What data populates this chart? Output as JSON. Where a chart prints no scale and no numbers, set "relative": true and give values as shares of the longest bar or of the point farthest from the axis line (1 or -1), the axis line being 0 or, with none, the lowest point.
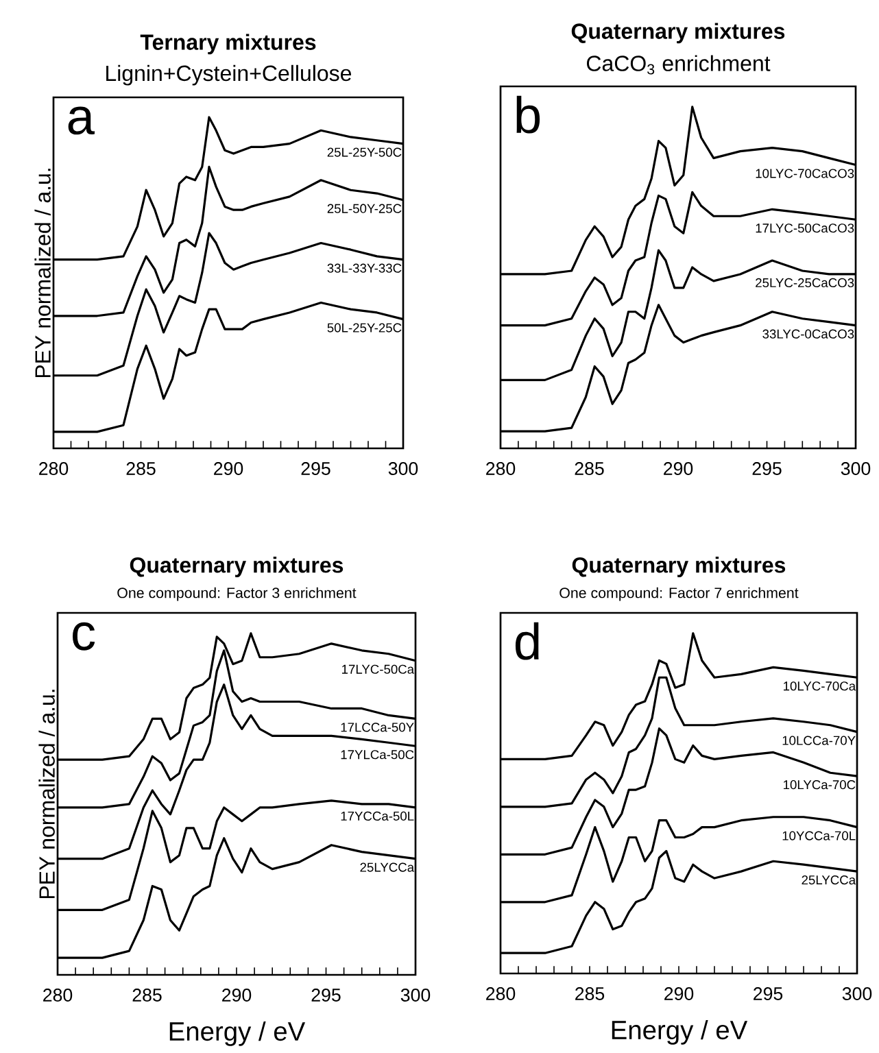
{
  "chart_data": [
    {
      "type": "line",
      "title": "Ternary mixtures",
      "subtitle": "Lignin+Cystein+Cellulose",
      "ylabel": "PEY normalized / a.u.",
      "annotations": [
        "a"
      ],
      "relative": true,
      "xlim": [
        280,
        300
      ],
      "xticks": [
        280,
        {
          "value": 281,
          "label": null
        },
        {
          "value": 282,
          "label": null
        },
        {
          "value": 283,
          "label": null
        },
        {
          "value": 284,
          "label": null
        },
        285,
        {
          "value": 286,
          "label": null
        },
        {
          "value": 287,
          "label": null
        },
        {
          "value": 288,
          "label": null
        },
        {
          "value": 289,
          "label": null
        },
        290,
        {
          "value": 291,
          "label": null
        },
        {
          "value": 292,
          "label": null
        },
        {
          "value": 293,
          "label": null
        },
        {
          "value": 294,
          "label": null
        },
        295,
        {
          "value": 296,
          "label": null
        },
        {
          "value": 297,
          "label": null
        },
        {
          "value": 298,
          "label": null
        },
        {
          "value": 299,
          "label": null
        },
        300
      ],
      "x": [
        280,
        282.5,
        284,
        284.8,
        285.3,
        285.8,
        286.3,
        286.8,
        287.2,
        287.6,
        288.1,
        288.5,
        288.9,
        289.3,
        289.8,
        290.3,
        290.8,
        291.3,
        292,
        293.5,
        295.3,
        297,
        298.5,
        300
      ],
      "series": [
        {
          "name": "25L-25Y-50C",
          "color": "#000000",
          "values": [
            0.57,
            0.57,
            0.58,
            0.67,
            0.78,
            0.72,
            0.64,
            0.68,
            0.8,
            0.82,
            0.81,
            0.85,
            1.0,
            0.96,
            0.9,
            0.89,
            0.9,
            0.91,
            0.91,
            0.92,
            0.96,
            0.94,
            0.93,
            0.92
          ]
        },
        {
          "name": "25L-50Y-25C",
          "color": "#000000",
          "values": [
            0.4,
            0.4,
            0.41,
            0.52,
            0.58,
            0.54,
            0.47,
            0.51,
            0.62,
            0.63,
            0.61,
            0.68,
            0.85,
            0.79,
            0.73,
            0.72,
            0.72,
            0.73,
            0.74,
            0.76,
            0.81,
            0.78,
            0.77,
            0.75
          ]
        },
        {
          "name": "33L-33Y-33C",
          "color": "#000000",
          "values": [
            0.22,
            0.22,
            0.25,
            0.4,
            0.48,
            0.43,
            0.35,
            0.41,
            0.46,
            0.45,
            0.44,
            0.53,
            0.65,
            0.62,
            0.56,
            0.54,
            0.55,
            0.56,
            0.57,
            0.59,
            0.62,
            0.6,
            0.58,
            0.57
          ]
        },
        {
          "name": "50L-25Y-25C",
          "color": "#000000",
          "values": [
            0.05,
            0.05,
            0.07,
            0.24,
            0.31,
            0.24,
            0.15,
            0.21,
            0.3,
            0.28,
            0.29,
            0.36,
            0.42,
            0.42,
            0.36,
            0.36,
            0.36,
            0.38,
            0.39,
            0.41,
            0.44,
            0.42,
            0.41,
            0.39
          ]
        }
      ]
    },
    {
      "type": "line",
      "title": "Quaternary mixtures",
      "subtitle": "CaCO$_{3}$ enrichment",
      "annotations": [
        "b"
      ],
      "relative": true,
      "xlim": [
        280,
        300
      ],
      "xticks": [
        280,
        {
          "value": 281,
          "label": null
        },
        {
          "value": 282,
          "label": null
        },
        {
          "value": 283,
          "label": null
        },
        {
          "value": 284,
          "label": null
        },
        285,
        {
          "value": 286,
          "label": null
        },
        {
          "value": 287,
          "label": null
        },
        {
          "value": 288,
          "label": null
        },
        {
          "value": 289,
          "label": null
        },
        290,
        {
          "value": 291,
          "label": null
        },
        {
          "value": 292,
          "label": null
        },
        {
          "value": 293,
          "label": null
        },
        {
          "value": 294,
          "label": null
        },
        295,
        {
          "value": 296,
          "label": null
        },
        {
          "value": 297,
          "label": null
        },
        {
          "value": 298,
          "label": null
        },
        {
          "value": 299,
          "label": null
        },
        300
      ],
      "x": [
        280,
        282.5,
        284,
        284.8,
        285.3,
        285.8,
        286.3,
        286.8,
        287.2,
        287.6,
        288.1,
        288.5,
        288.9,
        289.3,
        289.8,
        290.3,
        290.8,
        291.3,
        292,
        293.5,
        295.3,
        297,
        298.5,
        300
      ],
      "series": [
        {
          "name": "10LYC-70CaCO3",
          "color": "#000000",
          "values": [
            0.51,
            0.51,
            0.52,
            0.61,
            0.65,
            0.62,
            0.56,
            0.59,
            0.67,
            0.71,
            0.73,
            0.79,
            0.9,
            0.88,
            0.77,
            0.8,
            1.0,
            0.91,
            0.85,
            0.87,
            0.88,
            0.87,
            0.85,
            0.83
          ]
        },
        {
          "name": "17LYC-50CaCO3",
          "color": "#000000",
          "values": [
            0.36,
            0.36,
            0.38,
            0.46,
            0.5,
            0.48,
            0.42,
            0.44,
            0.52,
            0.55,
            0.56,
            0.66,
            0.74,
            0.73,
            0.65,
            0.63,
            0.75,
            0.71,
            0.68,
            0.68,
            0.7,
            0.69,
            0.68,
            0.67
          ]
        },
        {
          "name": "25LYC-25CaCO3",
          "color": "#000000",
          "values": [
            0.2,
            0.2,
            0.23,
            0.33,
            0.38,
            0.35,
            0.27,
            0.31,
            0.4,
            0.4,
            0.38,
            0.47,
            0.58,
            0.55,
            0.47,
            0.47,
            0.53,
            0.51,
            0.49,
            0.51,
            0.55,
            0.52,
            0.51,
            0.51
          ]
        },
        {
          "name": "33LYC-0CaCO3",
          "color": "#000000",
          "values": [
            0.05,
            0.05,
            0.06,
            0.15,
            0.24,
            0.21,
            0.13,
            0.17,
            0.25,
            0.26,
            0.28,
            0.36,
            0.42,
            0.38,
            0.33,
            0.31,
            0.32,
            0.33,
            0.34,
            0.36,
            0.4,
            0.38,
            0.37,
            0.36
          ]
        }
      ]
    },
    {
      "type": "line",
      "title": "Quaternary mixtures",
      "subtitle": "One compound: Factor 3 enrichment",
      "xlabel": "Energy / eV",
      "ylabel": "PEY normalized / a.u.",
      "annotations": [
        "c"
      ],
      "relative": true,
      "xlim": [
        280,
        300
      ],
      "xticks": [
        280,
        {
          "value": 281,
          "label": null
        },
        {
          "value": 282,
          "label": null
        },
        {
          "value": 283,
          "label": null
        },
        {
          "value": 284,
          "label": null
        },
        285,
        {
          "value": 286,
          "label": null
        },
        {
          "value": 287,
          "label": null
        },
        {
          "value": 288,
          "label": null
        },
        {
          "value": 289,
          "label": null
        },
        290,
        {
          "value": 291,
          "label": null
        },
        {
          "value": 292,
          "label": null
        },
        {
          "value": 293,
          "label": null
        },
        {
          "value": 294,
          "label": null
        },
        295,
        {
          "value": 296,
          "label": null
        },
        {
          "value": 297,
          "label": null
        },
        {
          "value": 298,
          "label": null
        },
        {
          "value": 299,
          "label": null
        },
        300
      ],
      "x": [
        280,
        282.5,
        284,
        284.8,
        285.3,
        285.8,
        286.3,
        286.8,
        287.2,
        287.6,
        288.1,
        288.5,
        288.9,
        289.3,
        289.8,
        290.3,
        290.8,
        291.3,
        292,
        293.5,
        295.3,
        297,
        298.5,
        300
      ],
      "series": [
        {
          "name": "17LYC-50Ca",
          "color": "#000000",
          "values": [
            0.63,
            0.63,
            0.64,
            0.69,
            0.75,
            0.75,
            0.69,
            0.71,
            0.81,
            0.84,
            0.85,
            0.87,
            0.99,
            0.97,
            0.91,
            0.92,
            1.0,
            0.93,
            0.93,
            0.94,
            0.97,
            0.95,
            0.94,
            0.92
          ]
        },
        {
          "name": "17LCCa-50Y",
          "color": "#000000",
          "values": [
            0.49,
            0.49,
            0.5,
            0.58,
            0.64,
            0.62,
            0.57,
            0.59,
            0.66,
            0.73,
            0.74,
            0.76,
            0.89,
            0.95,
            0.83,
            0.8,
            0.81,
            0.8,
            0.8,
            0.8,
            0.78,
            0.78,
            0.76,
            0.75
          ]
        },
        {
          "name": "17YLCa-50C",
          "color": "#000000",
          "values": [
            0.34,
            0.34,
            0.37,
            0.49,
            0.54,
            0.5,
            0.47,
            0.54,
            0.6,
            0.63,
            0.63,
            0.68,
            0.8,
            0.85,
            0.76,
            0.72,
            0.76,
            0.72,
            0.7,
            0.7,
            0.7,
            0.69,
            0.68,
            0.67
          ]
        },
        {
          "name": "17YCCa-50L",
          "color": "#000000",
          "values": [
            0.19,
            0.19,
            0.22,
            0.37,
            0.48,
            0.43,
            0.33,
            0.35,
            0.43,
            0.43,
            0.37,
            0.37,
            0.45,
            0.49,
            0.47,
            0.45,
            0.47,
            0.49,
            0.49,
            0.5,
            0.51,
            0.5,
            0.5,
            0.49
          ]
        },
        {
          "name": "25LYCCa",
          "color": "#000000",
          "values": [
            0.05,
            0.05,
            0.07,
            0.16,
            0.26,
            0.25,
            0.16,
            0.13,
            0.18,
            0.23,
            0.25,
            0.26,
            0.35,
            0.4,
            0.34,
            0.3,
            0.37,
            0.33,
            0.31,
            0.33,
            0.38,
            0.36,
            0.35,
            0.34
          ]
        }
      ]
    },
    {
      "type": "line",
      "title": "Quaternary mixtures",
      "subtitle": "One compound: Factor 7 enrichment",
      "xlabel": "Energy / eV",
      "annotations": [
        "d"
      ],
      "relative": true,
      "xlim": [
        280,
        300
      ],
      "xticks": [
        280,
        {
          "value": 281,
          "label": null
        },
        {
          "value": 282,
          "label": null
        },
        {
          "value": 283,
          "label": null
        },
        {
          "value": 284,
          "label": null
        },
        285,
        {
          "value": 286,
          "label": null
        },
        {
          "value": 287,
          "label": null
        },
        {
          "value": 288,
          "label": null
        },
        {
          "value": 289,
          "label": null
        },
        290,
        {
          "value": 291,
          "label": null
        },
        {
          "value": 292,
          "label": null
        },
        {
          "value": 293,
          "label": null
        },
        {
          "value": 294,
          "label": null
        },
        295,
        {
          "value": 296,
          "label": null
        },
        {
          "value": 297,
          "label": null
        },
        {
          "value": 298,
          "label": null
        },
        {
          "value": 299,
          "label": null
        },
        300
      ],
      "x": [
        280,
        282.5,
        284,
        284.8,
        285.3,
        285.8,
        286.3,
        286.8,
        287.2,
        287.6,
        288.1,
        288.5,
        288.9,
        289.3,
        289.8,
        290.3,
        290.8,
        291.3,
        292,
        293.5,
        295.3,
        297,
        298.5,
        300
      ],
      "series": [
        {
          "name": "10LYC-70Ca",
          "color": "#000000",
          "values": [
            0.63,
            0.63,
            0.64,
            0.7,
            0.74,
            0.73,
            0.67,
            0.71,
            0.76,
            0.79,
            0.8,
            0.85,
            0.92,
            0.91,
            0.84,
            0.85,
            1.0,
            0.92,
            0.87,
            0.88,
            0.9,
            0.89,
            0.88,
            0.87
          ]
        },
        {
          "name": "10LCCa-70Y",
          "color": "#000000",
          "values": [
            0.49,
            0.49,
            0.5,
            0.57,
            0.59,
            0.57,
            0.53,
            0.58,
            0.65,
            0.66,
            0.7,
            0.75,
            0.87,
            0.87,
            0.78,
            0.73,
            0.73,
            0.73,
            0.73,
            0.74,
            0.75,
            0.74,
            0.73,
            0.71
          ]
        },
        {
          "name": "10LYCa-70C",
          "color": "#000000",
          "values": [
            0.35,
            0.35,
            0.37,
            0.46,
            0.51,
            0.49,
            0.43,
            0.47,
            0.54,
            0.54,
            0.55,
            0.62,
            0.72,
            0.7,
            0.63,
            0.62,
            0.67,
            0.64,
            0.63,
            0.64,
            0.65,
            0.62,
            0.59,
            0.58
          ]
        },
        {
          "name": "10YCCa-70L",
          "color": "#000000",
          "values": [
            0.21,
            0.21,
            0.23,
            0.35,
            0.43,
            0.36,
            0.27,
            0.33,
            0.4,
            0.4,
            0.33,
            0.36,
            0.45,
            0.45,
            0.4,
            0.4,
            0.41,
            0.43,
            0.43,
            0.45,
            0.46,
            0.46,
            0.45,
            0.43
          ]
        },
        {
          "name": "25LYCCa",
          "color": "#000000",
          "values": [
            0.06,
            0.06,
            0.08,
            0.17,
            0.21,
            0.19,
            0.13,
            0.14,
            0.18,
            0.21,
            0.22,
            0.25,
            0.34,
            0.36,
            0.28,
            0.27,
            0.32,
            0.3,
            0.28,
            0.3,
            0.33,
            0.32,
            0.31,
            0.3
          ]
        }
      ]
    }
  ]
}
